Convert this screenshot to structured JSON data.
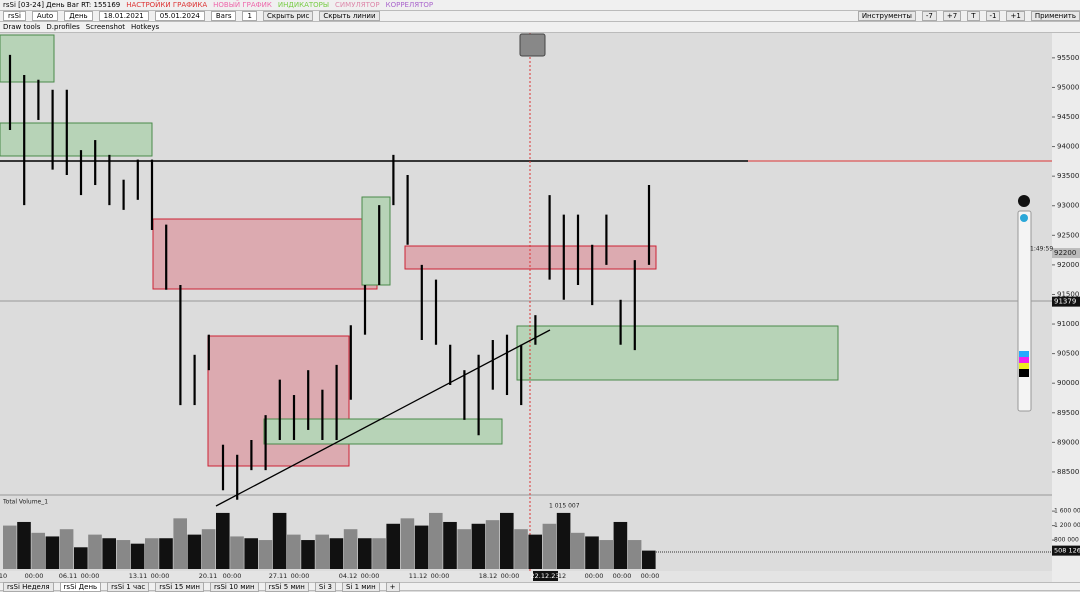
{
  "header": {
    "title": "rsSi [03-24] День Bar RT: 155169",
    "menu": [
      "НАСТРОЙКИ ГРАФИКА",
      "НОВЫЙ ГРАФИК",
      "ИНДИКАТОРЫ",
      "СИМУЛЯТОР",
      "КОРРЕЛЯТОР"
    ]
  },
  "toolbar": {
    "left": [
      "rsSi",
      "Auto",
      "День",
      "18.01.2021",
      "05.01.2024",
      "Bars",
      "1",
      "Скрыть рис",
      "Скрыть линии"
    ],
    "right": [
      "Инструменты",
      "-7",
      "+7",
      "T",
      "-1",
      "+1",
      "Применить"
    ]
  },
  "toolbar2": [
    "Draw tools",
    "D.profiles",
    "Screenshot",
    "Hotkeys"
  ],
  "chart_data": {
    "type": "ohlc",
    "color": "#000000",
    "high": [
      95550,
      95210,
      95130,
      94960,
      94960,
      93940,
      94110,
      93860,
      93440,
      93780,
      93780,
      92680,
      91660,
      90480,
      90820,
      88960,
      88790,
      89040,
      89460,
      90060,
      89800,
      90220,
      89890,
      90310,
      90980,
      91660,
      93010,
      93860,
      93520,
      92000,
      91750,
      90650,
      90220,
      90480,
      90730,
      90820,
      90650,
      91150,
      93180,
      92850,
      92850,
      92340,
      92850,
      91410,
      92080,
      93350
    ],
    "low": [
      94280,
      93010,
      94450,
      93610,
      93520,
      93180,
      93350,
      93010,
      92930,
      93100,
      92590,
      91580,
      89630,
      89630,
      90220,
      88190,
      88030,
      88530,
      88530,
      89040,
      89040,
      89210,
      89040,
      89040,
      89720,
      90820,
      91660,
      93010,
      92340,
      90730,
      90650,
      89970,
      89380,
      89120,
      89890,
      89800,
      89630,
      90650,
      91750,
      91410,
      91660,
      91320,
      92000,
      90650,
      90560,
      92000
    ],
    "ylim": [
      88110,
      95920
    ],
    "yticks": [
      95500,
      95000,
      94500,
      94000,
      93500,
      93000,
      92500,
      92000,
      91500,
      91000,
      90500,
      90000,
      89500,
      89000,
      88500
    ],
    "last_price": 92200,
    "timer": "1:49:59",
    "cursor_price": 91379,
    "volume": {
      "name": "Total Volume_1",
      "values": [
        1200000,
        1300000,
        1000000,
        900000,
        1100000,
        600000,
        950000,
        850000,
        800000,
        700000,
        850000,
        850000,
        1400000,
        950000,
        1100000,
        1550000,
        900000,
        850000,
        800000,
        1550000,
        950000,
        800000,
        950000,
        850000,
        1100000,
        850000,
        850000,
        1250000,
        1400000,
        1200000,
        1550000,
        1300000,
        1100000,
        1250000,
        1350000,
        1550000,
        1100000,
        950000,
        1250000,
        1550000,
        1000000,
        900000,
        800000,
        1300000,
        800000,
        508126
      ],
      "ylim": [
        0,
        1990000
      ],
      "yticks": [
        {
          "value": 1600000,
          "label": "1 600 000"
        },
        {
          "value": 1200000,
          "label": "1 200 000"
        },
        {
          "value": 800000,
          "label": "800 000"
        }
      ],
      "cursor_label": "1 015 007",
      "last_label": "508 126"
    },
    "time_labels": [
      "10",
      "00:00",
      "06.11",
      "00:00",
      "13.11",
      "00:00",
      "20.11",
      "00:00",
      "27.11",
      "00:00",
      "04.12",
      "00:00",
      "11.12",
      "00:00",
      "18.12",
      "00:00",
      "22.12.23",
      "12",
      "00:00",
      "00:00",
      "00:00"
    ]
  },
  "tabs": [
    "rsSi Неделя",
    "rsSi День",
    "rsSi 1 час",
    "rsSi 15 мин",
    "rsSi 10 мин",
    "rsSi 5 мин",
    "Si 3",
    "Si 1 мин",
    "+"
  ]
}
